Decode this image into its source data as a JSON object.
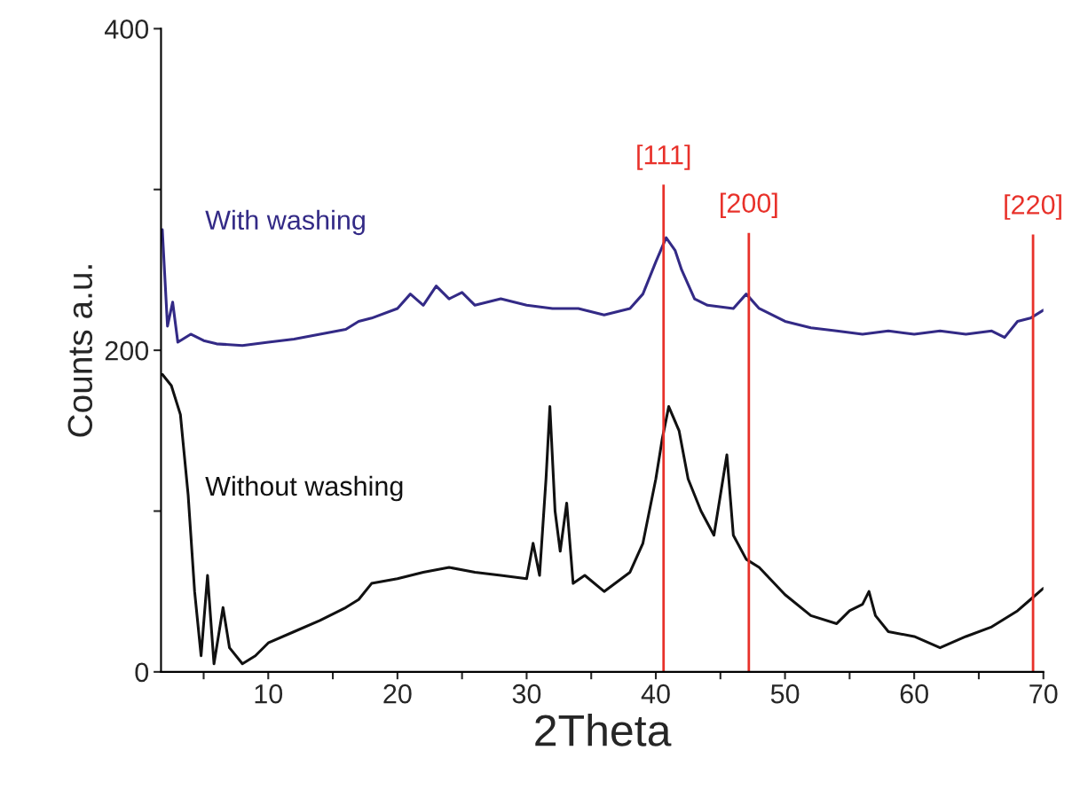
{
  "chart_data": {
    "type": "line",
    "xlabel": "2Theta",
    "ylabel": "Counts a.u.",
    "xlim": [
      1.7,
      70
    ],
    "ylim": [
      0,
      400
    ],
    "xticks": [
      {
        "value": 5,
        "label": null
      },
      10,
      {
        "value": 15,
        "label": null
      },
      20,
      {
        "value": 25,
        "label": null
      },
      30,
      {
        "value": 35,
        "label": null
      },
      40,
      {
        "value": 45,
        "label": null
      },
      50,
      {
        "value": 55,
        "label": null
      },
      60,
      {
        "value": 65,
        "label": null
      },
      70
    ],
    "yticks": [
      0,
      {
        "value": 100,
        "label": null
      },
      200,
      {
        "value": 300,
        "label": null
      },
      400
    ],
    "grid": false,
    "legend": false,
    "marker": "none",
    "line_style": "solid",
    "series": [
      {
        "name": "With washing",
        "color": "#332a86",
        "x": [
          1.8,
          2.2,
          2.6,
          3,
          4,
          5,
          6,
          8,
          10,
          12,
          14,
          16,
          17,
          18,
          20,
          21,
          22,
          23,
          24,
          25,
          26,
          28,
          30,
          32,
          34,
          36,
          38,
          39,
          40,
          40.8,
          41.5,
          42,
          43,
          44,
          46,
          47,
          48,
          50,
          52,
          54,
          56,
          58,
          60,
          62,
          64,
          66,
          67,
          68,
          69,
          70
        ],
        "values": [
          275,
          215,
          230,
          205,
          210,
          206,
          204,
          203,
          205,
          207,
          210,
          213,
          218,
          220,
          226,
          235,
          228,
          240,
          232,
          236,
          228,
          232,
          228,
          226,
          226,
          222,
          226,
          235,
          255,
          270,
          262,
          250,
          232,
          228,
          226,
          235,
          226,
          218,
          214,
          212,
          210,
          212,
          210,
          212,
          210,
          212,
          208,
          218,
          220,
          225
        ]
      },
      {
        "name": "Without washing",
        "color": "#111111",
        "x": [
          1.8,
          2.5,
          3.2,
          3.8,
          4.3,
          4.8,
          5.3,
          5.8,
          6.5,
          7,
          8,
          9,
          10,
          12,
          14,
          16,
          17,
          18,
          20,
          22,
          24,
          26,
          28,
          30,
          30.5,
          31,
          31.5,
          31.8,
          32.2,
          32.6,
          33.1,
          33.6,
          34.5,
          36,
          38,
          39,
          40,
          40.5,
          41,
          41.8,
          42.5,
          43.5,
          44.5,
          45.2,
          45.5,
          46,
          47,
          48,
          50,
          52,
          54,
          55,
          56,
          56.5,
          57,
          58,
          60,
          62,
          64,
          66,
          68,
          69,
          70
        ],
        "values": [
          185,
          178,
          160,
          110,
          50,
          10,
          60,
          5,
          40,
          15,
          5,
          10,
          18,
          25,
          32,
          40,
          45,
          55,
          58,
          62,
          65,
          62,
          60,
          58,
          80,
          60,
          120,
          165,
          100,
          75,
          105,
          55,
          60,
          50,
          62,
          80,
          120,
          145,
          165,
          150,
          120,
          100,
          85,
          120,
          135,
          85,
          70,
          65,
          48,
          35,
          30,
          38,
          42,
          50,
          35,
          25,
          22,
          15,
          22,
          28,
          38,
          45,
          52
        ]
      }
    ],
    "ref_lines": [
      {
        "axis": "x",
        "value": 40.6,
        "color": "#e8312a"
      },
      {
        "axis": "x",
        "value": 47.2,
        "color": "#e8312a"
      },
      {
        "axis": "x",
        "value": 69.2,
        "color": "#e8312a"
      }
    ],
    "annotations": [
      {
        "text": "[111]",
        "x": 40.6,
        "y": 303
      },
      {
        "text": "[200]",
        "x": 47.2,
        "y": 273
      },
      {
        "text": "[220]",
        "x": 69.2,
        "y": 272
      }
    ]
  }
}
